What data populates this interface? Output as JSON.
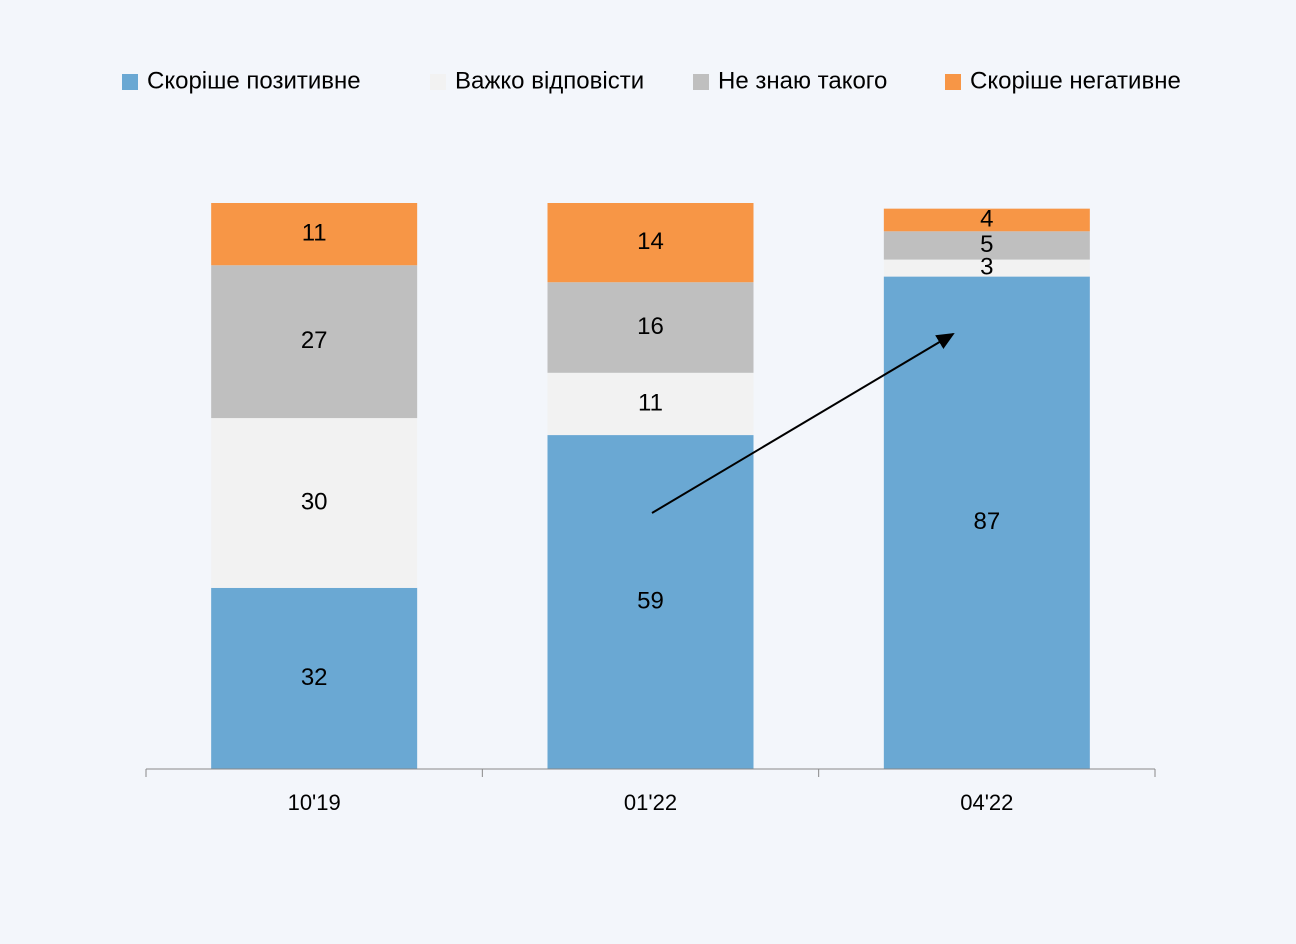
{
  "chart_data": {
    "type": "stacked_bar",
    "categories": [
      "10'19",
      "01'22",
      "04'22"
    ],
    "series": [
      {
        "name": "Скоріше позитивне",
        "color": "#6aa8d3",
        "values": [
          32,
          59,
          87
        ]
      },
      {
        "name": "Важко відповісти",
        "color": "#f2f2f2",
        "values": [
          30,
          11,
          3
        ]
      },
      {
        "name": "Не знаю такого",
        "color": "#bfbfbf",
        "values": [
          27,
          16,
          5
        ]
      },
      {
        "name": "Скоріше негативне",
        "color": "#f79646",
        "values": [
          11,
          14,
          4
        ]
      }
    ],
    "ylim": [
      0,
      100
    ],
    "legend": "top"
  }
}
